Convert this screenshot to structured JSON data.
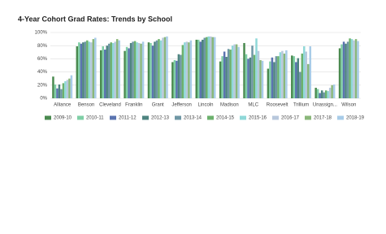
{
  "chart_data": {
    "type": "bar",
    "title": "4-Year Cohort Grad Rates: Trends by School",
    "categories": [
      "Alliance",
      "Benson",
      "Cleveland",
      "Franklin",
      "Grant",
      "Jefferson",
      "Lincoln",
      "Madison",
      "MLC",
      "Roosevelt",
      "Trillium",
      "Unassign...",
      "Wilson"
    ],
    "series": [
      {
        "name": "2009-10",
        "color": "#4a8a4f",
        "values": [
          33,
          79,
          73,
          72,
          85,
          55,
          89,
          56,
          84,
          45,
          65,
          16,
          76
        ]
      },
      {
        "name": "2010-11",
        "color": "#7fcfa6",
        "values": [
          21,
          85,
          79,
          78,
          84,
          58,
          89,
          64,
          67,
          56,
          64,
          14,
          82
        ]
      },
      {
        "name": "2011-12",
        "color": "#5b74b0",
        "values": [
          15,
          83,
          74,
          76,
          80,
          57,
          86,
          71,
          60,
          62,
          55,
          8,
          86
        ]
      },
      {
        "name": "2012-13",
        "color": "#4e8480",
        "values": [
          21,
          85,
          80,
          84,
          86,
          67,
          89,
          63,
          62,
          55,
          61,
          12,
          83
        ]
      },
      {
        "name": "2013-14",
        "color": "#6f97a5",
        "values": [
          14,
          86,
          83,
          86,
          88,
          66,
          92,
          75,
          80,
          64,
          40,
          9,
          86
        ]
      },
      {
        "name": "2014-15",
        "color": "#6cb16d",
        "values": [
          23,
          88,
          85,
          87,
          90,
          81,
          93,
          74,
          66,
          64,
          68,
          12,
          91
        ]
      },
      {
        "name": "2015-16",
        "color": "#8fd8d8",
        "values": [
          26,
          86,
          84,
          85,
          88,
          85,
          94,
          80,
          91,
          70,
          79,
          11,
          90
        ]
      },
      {
        "name": "2016-17",
        "color": "#b8c8dc",
        "values": [
          28,
          85,
          86,
          84,
          92,
          86,
          94,
          82,
          72,
          72,
          71,
          16,
          88
        ]
      },
      {
        "name": "2017-18",
        "color": "#8ab77a",
        "values": [
          30,
          90,
          90,
          83,
          93,
          85,
          93,
          82,
          58,
          68,
          52,
          20,
          90
        ]
      },
      {
        "name": "2018-19",
        "color": "#a8cce8",
        "values": [
          35,
          92,
          88,
          86,
          94,
          88,
          93,
          78,
          57,
          73,
          79,
          21,
          87
        ]
      }
    ],
    "ylim": [
      0,
      100
    ],
    "yticks": [
      {
        "value": 0,
        "label": "0%"
      },
      {
        "value": 20,
        "label": "20%"
      },
      {
        "value": 40,
        "label": "40%"
      },
      {
        "value": 60,
        "label": "60%"
      },
      {
        "value": 80,
        "label": "80%"
      },
      {
        "value": 100,
        "label": "100%"
      }
    ],
    "grid": true
  }
}
